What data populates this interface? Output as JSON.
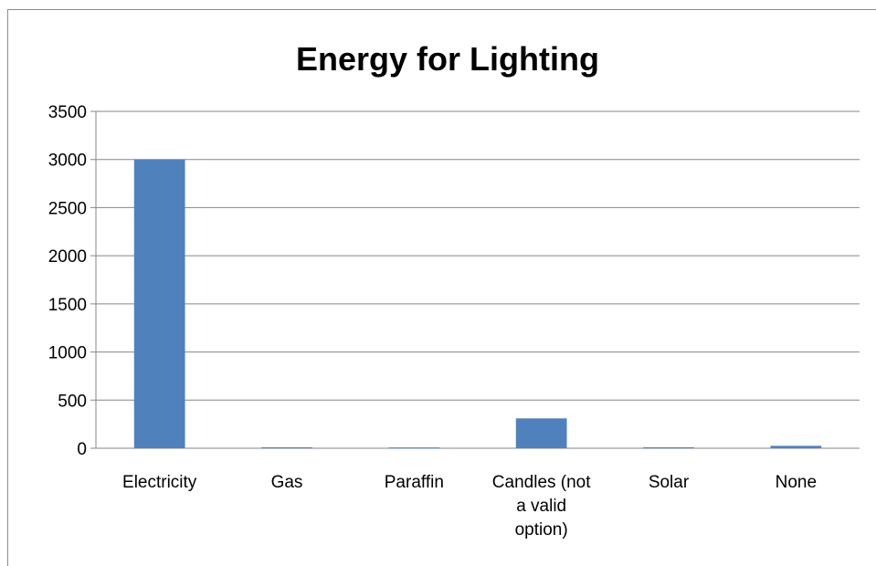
{
  "chart_data": {
    "type": "bar",
    "title": "Energy for Lighting",
    "xlabel": "",
    "ylabel": "",
    "categories": [
      "Electricity",
      "Gas",
      "Paraffin",
      "Candles (not a valid option)",
      "Solar",
      "None"
    ],
    "category_lines": [
      [
        "Electricity"
      ],
      [
        "Gas"
      ],
      [
        "Paraffin"
      ],
      [
        "Candles (not",
        "a valid",
        "option)"
      ],
      [
        "Solar"
      ],
      [
        "None"
      ]
    ],
    "values": [
      3000,
      10,
      8,
      310,
      10,
      25
    ],
    "ylim": [
      0,
      3500
    ],
    "yticks": [
      "0",
      "500",
      "1000",
      "1500",
      "2000",
      "2500",
      "3000",
      "3500"
    ],
    "grid": true,
    "legend": "none",
    "bar_color": "#4f81bd",
    "grid_color": "#868686"
  }
}
